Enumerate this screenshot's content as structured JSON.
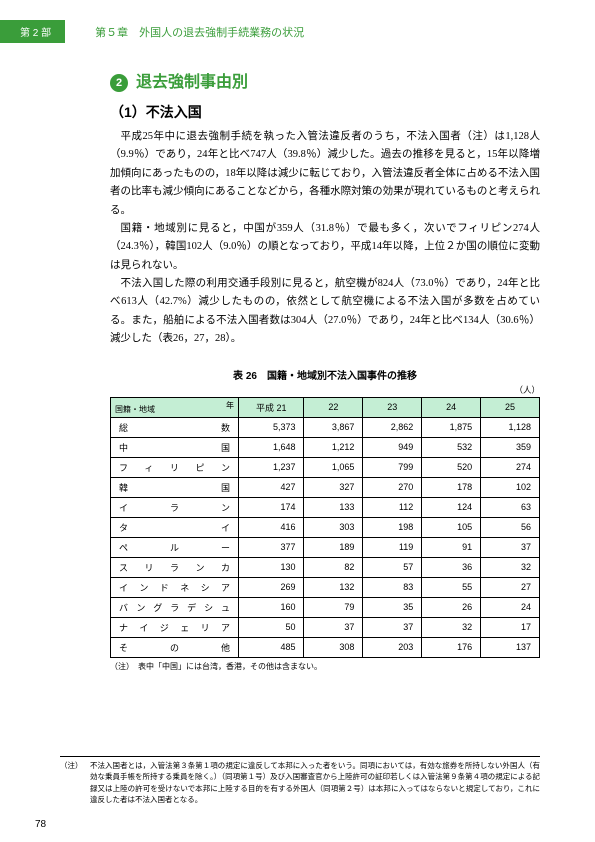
{
  "header": {
    "part_tab": "第 2 部",
    "chapter": "第５章　外国人の退去強制手続業務の状況"
  },
  "section": {
    "num": "❷",
    "title": "退去強制事由別",
    "subsection": "（1）不法入国"
  },
  "paragraphs": [
    "平成25年中に退去強制手続を執った入管法違反者のうち，不法入国者（注）は1,128人（9.9％）であり，24年と比べ747人（39.8％）減少した。過去の推移を見ると，15年以降増加傾向にあったものの，18年以降は減少に転じており，入管法違反者全体に占める不法入国者の比率も減少傾向にあることなどから，各種水際対策の効果が現れているものと考えられる。",
    "国籍・地域別に見ると，中国が359人（31.8％）で最も多く，次いでフィリピン274人（24.3％），韓国102人（9.0％）の順となっており，平成14年以降，上位２か国の順位に変動は見られない。",
    "不法入国した際の利用交通手段別に見ると，航空機が824人（73.0％）であり，24年と比べ613人（42.7%）減少したものの，依然として航空機による不法入国が多数を占めている。また，船舶による不法入国者数は304人（27.0％）であり，24年と比べ134人（30.6％）減少した（表26，27，28）。"
  ],
  "table": {
    "caption": "表 26　国籍・地域別不法入国事件の推移",
    "unit": "（人）",
    "corner_top": "年",
    "corner_bottom": "国籍・地域",
    "year_headers": [
      "平成 21",
      "22",
      "23",
      "24",
      "25"
    ],
    "rows": [
      {
        "label": "総数",
        "cells": [
          "5,373",
          "3,867",
          "2,862",
          "1,875",
          "1,128"
        ]
      },
      {
        "label": "中国",
        "cells": [
          "1,648",
          "1,212",
          "949",
          "532",
          "359"
        ]
      },
      {
        "label": "フィリピン",
        "cells": [
          "1,237",
          "1,065",
          "799",
          "520",
          "274"
        ]
      },
      {
        "label": "韓国",
        "cells": [
          "427",
          "327",
          "270",
          "178",
          "102"
        ]
      },
      {
        "label": "イラン",
        "cells": [
          "174",
          "133",
          "112",
          "124",
          "63"
        ]
      },
      {
        "label": "タイ",
        "cells": [
          "416",
          "303",
          "198",
          "105",
          "56"
        ]
      },
      {
        "label": "ペルー",
        "cells": [
          "377",
          "189",
          "119",
          "91",
          "37"
        ]
      },
      {
        "label": "スリランカ",
        "cells": [
          "130",
          "82",
          "57",
          "36",
          "32"
        ]
      },
      {
        "label": "インドネシア",
        "cells": [
          "269",
          "132",
          "83",
          "55",
          "27"
        ]
      },
      {
        "label": "バングラデシュ",
        "cells": [
          "160",
          "79",
          "35",
          "26",
          "24"
        ]
      },
      {
        "label": "ナイジェリア",
        "cells": [
          "50",
          "37",
          "37",
          "32",
          "17"
        ]
      },
      {
        "label": "その他",
        "cells": [
          "485",
          "308",
          "203",
          "176",
          "137"
        ]
      }
    ],
    "note": "（注）　表中「中国」には台湾，香港，その他は含まない。"
  },
  "footnote": {
    "label": "（注）",
    "body": "不法入国者とは，入管法第３条第１項の規定に違反して本邦に入った者をいう。同項においては，有効な旅券を所持しない外国人（有効な乗員手帳を所持する乗員を除く。）（同項第１号）及び入国審査官から上陸許可の証印若しくは入管法第９条第４項の規定による記録又は上陸の許可を受けないで本邦に上陸する目的を有する外国人（同項第２号）は本邦に入ってはならないと規定しており，これに違反した者は不法入国者となる。"
  },
  "page_number": "78"
}
